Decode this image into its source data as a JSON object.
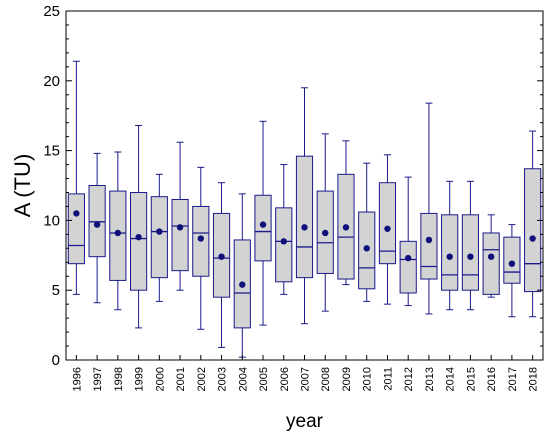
{
  "chart_data": {
    "type": "box",
    "xlabel": "year",
    "ylabel": "A (TU)",
    "ylim": [
      0,
      25
    ],
    "yticks": [
      0,
      5,
      10,
      15,
      20,
      25
    ],
    "grid": false,
    "colors": {
      "box_fill": "#d3d3d3",
      "stroke": "#1a1a8c",
      "mean": "#10107a",
      "frame": "#000000"
    },
    "categories": [
      "1996",
      "1997",
      "1998",
      "1999",
      "2000",
      "2001",
      "2002",
      "2003",
      "2004",
      "2005",
      "2006",
      "2007",
      "2008",
      "2009",
      "2010",
      "2011",
      "2012",
      "2013",
      "2014",
      "2015",
      "2016",
      "2017",
      "2018"
    ],
    "boxes": [
      {
        "min": 4.7,
        "q1": 6.9,
        "median": 8.2,
        "q3": 11.9,
        "max": 21.4,
        "mean": 10.5
      },
      {
        "min": 4.1,
        "q1": 7.4,
        "median": 9.9,
        "q3": 12.5,
        "max": 14.8,
        "mean": 9.7
      },
      {
        "min": 3.6,
        "q1": 5.7,
        "median": 9.1,
        "q3": 12.1,
        "max": 14.9,
        "mean": 9.1
      },
      {
        "min": 2.3,
        "q1": 5.0,
        "median": 8.7,
        "q3": 12.0,
        "max": 16.8,
        "mean": 8.8
      },
      {
        "min": 4.2,
        "q1": 5.9,
        "median": 9.2,
        "q3": 11.7,
        "max": 13.3,
        "mean": 9.2
      },
      {
        "min": 5.0,
        "q1": 6.4,
        "median": 9.6,
        "q3": 11.5,
        "max": 15.6,
        "mean": 9.5
      },
      {
        "min": 2.2,
        "q1": 6.0,
        "median": 9.1,
        "q3": 11.0,
        "max": 13.8,
        "mean": 8.7
      },
      {
        "min": 0.9,
        "q1": 4.5,
        "median": 7.3,
        "q3": 10.5,
        "max": 12.7,
        "mean": 7.4
      },
      {
        "min": 0.2,
        "q1": 2.3,
        "median": 4.8,
        "q3": 8.6,
        "max": 11.9,
        "mean": 5.4
      },
      {
        "min": 2.5,
        "q1": 7.1,
        "median": 9.2,
        "q3": 11.8,
        "max": 17.1,
        "mean": 9.7
      },
      {
        "min": 4.7,
        "q1": 5.6,
        "median": 8.5,
        "q3": 10.9,
        "max": 14.0,
        "mean": 8.5
      },
      {
        "min": 2.6,
        "q1": 5.9,
        "median": 8.1,
        "q3": 14.6,
        "max": 19.5,
        "mean": 9.5
      },
      {
        "min": 3.5,
        "q1": 6.2,
        "median": 8.4,
        "q3": 12.1,
        "max": 16.2,
        "mean": 9.1
      },
      {
        "min": 5.4,
        "q1": 5.8,
        "median": 8.8,
        "q3": 13.3,
        "max": 15.7,
        "mean": 9.5
      },
      {
        "min": 4.2,
        "q1": 5.1,
        "median": 6.6,
        "q3": 10.6,
        "max": 14.1,
        "mean": 8.0
      },
      {
        "min": 4.0,
        "q1": 6.9,
        "median": 7.8,
        "q3": 12.7,
        "max": 14.7,
        "mean": 9.4
      },
      {
        "min": 3.9,
        "q1": 4.8,
        "median": 7.2,
        "q3": 8.5,
        "max": 13.1,
        "mean": 7.3
      },
      {
        "min": 3.3,
        "q1": 5.8,
        "median": 6.7,
        "q3": 10.5,
        "max": 18.4,
        "mean": 8.6
      },
      {
        "min": 3.6,
        "q1": 5.0,
        "median": 6.1,
        "q3": 10.4,
        "max": 12.8,
        "mean": 7.4
      },
      {
        "min": 3.6,
        "q1": 5.0,
        "median": 6.1,
        "q3": 10.4,
        "max": 12.8,
        "mean": 7.4
      },
      {
        "min": 4.5,
        "q1": 4.7,
        "median": 7.9,
        "q3": 9.1,
        "max": 10.4,
        "mean": 7.4
      },
      {
        "min": 3.1,
        "q1": 5.5,
        "median": 6.3,
        "q3": 8.8,
        "max": 9.7,
        "mean": 6.9
      },
      {
        "min": 3.1,
        "q1": 4.9,
        "median": 6.9,
        "q3": 13.7,
        "max": 16.4,
        "mean": 8.7
      }
    ]
  }
}
